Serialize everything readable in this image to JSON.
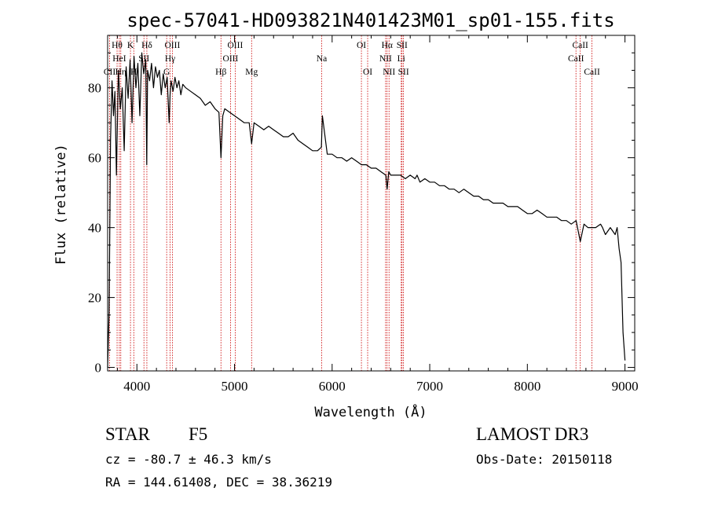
{
  "chart_data": {
    "type": "line",
    "title": "spec-57041-HD093821N401423M01_sp01-155.fits",
    "xlabel": "Wavelength (Å)",
    "ylabel": "Flux (relative)",
    "xlim": [
      3700,
      9100
    ],
    "ylim": [
      -1,
      95
    ],
    "xticks": [
      4000,
      5000,
      6000,
      7000,
      8000,
      9000
    ],
    "xtick_labels": [
      "4000",
      "5000",
      "6000",
      "7000",
      "8000",
      "9000"
    ],
    "yticks": [
      0,
      20,
      40,
      60,
      80
    ],
    "ytick_labels": [
      "0",
      "20",
      "40",
      "60",
      "80"
    ],
    "series": [
      {
        "name": "spectrum",
        "x": [
          3700,
          3715,
          3730,
          3745,
          3760,
          3775,
          3790,
          3810,
          3830,
          3850,
          3870,
          3890,
          3910,
          3930,
          3950,
          3970,
          3990,
          4010,
          4030,
          4050,
          4070,
          4090,
          4101,
          4110,
          4130,
          4150,
          4170,
          4190,
          4210,
          4230,
          4250,
          4270,
          4290,
          4310,
          4330,
          4340,
          4350,
          4370,
          4390,
          4410,
          4430,
          4450,
          4470,
          4500,
          4550,
          4600,
          4650,
          4700,
          4750,
          4800,
          4840,
          4861,
          4880,
          4900,
          4950,
          5000,
          5050,
          5100,
          5150,
          5175,
          5200,
          5250,
          5300,
          5350,
          5400,
          5450,
          5500,
          5550,
          5600,
          5650,
          5700,
          5750,
          5800,
          5850,
          5890,
          5900,
          5950,
          6000,
          6050,
          6100,
          6150,
          6200,
          6250,
          6300,
          6350,
          6400,
          6450,
          6500,
          6550,
          6563,
          6580,
          6600,
          6650,
          6700,
          6750,
          6800,
          6850,
          6870,
          6900,
          6950,
          7000,
          7050,
          7100,
          7150,
          7200,
          7250,
          7300,
          7350,
          7400,
          7450,
          7500,
          7550,
          7600,
          7650,
          7700,
          7750,
          7800,
          7850,
          7900,
          7950,
          8000,
          8050,
          8100,
          8150,
          8200,
          8250,
          8300,
          8350,
          8400,
          8450,
          8500,
          8542,
          8580,
          8620,
          8662,
          8700,
          8750,
          8770,
          8800,
          8850,
          8900,
          8920,
          8940,
          8960,
          8980,
          9000
        ],
        "y": [
          0,
          16,
          65,
          82,
          72,
          79,
          55,
          85,
          74,
          80,
          62,
          86,
          77,
          88,
          70,
          89,
          80,
          87,
          72,
          90,
          84,
          88,
          58,
          85,
          82,
          87,
          80,
          86,
          83,
          85,
          78,
          84,
          80,
          83,
          70,
          78,
          82,
          79,
          83,
          80,
          82,
          78,
          81,
          80,
          79,
          78,
          77,
          75,
          76,
          74,
          73,
          60,
          72,
          74,
          73,
          72,
          71,
          70,
          70,
          64,
          70,
          69,
          68,
          69,
          68,
          67,
          66,
          66,
          67,
          65,
          64,
          63,
          62,
          62,
          63,
          72,
          61,
          61,
          60,
          60,
          59,
          60,
          59,
          58,
          58,
          57,
          57,
          56,
          55,
          51,
          56,
          55,
          55,
          55,
          54,
          55,
          54,
          55,
          53,
          54,
          53,
          53,
          52,
          52,
          51,
          51,
          50,
          51,
          50,
          49,
          49,
          48,
          48,
          47,
          47,
          47,
          46,
          46,
          46,
          45,
          44,
          44,
          45,
          44,
          43,
          43,
          43,
          42,
          42,
          41,
          42,
          36,
          41,
          40,
          40,
          40,
          41,
          40,
          38,
          40,
          38,
          40,
          34,
          30,
          10,
          2
        ]
      }
    ],
    "line_markers": [
      {
        "name": "CII",
        "wavelength": 3720,
        "row": 2
      },
      {
        "name": "Hθ",
        "wavelength": 3797,
        "row": 0
      },
      {
        "name": "HeI",
        "wavelength": 3820,
        "row": 1
      },
      {
        "name": "Hη",
        "wavelength": 3835,
        "row": 2
      },
      {
        "name": "K",
        "wavelength": 3934,
        "row": 0
      },
      {
        "name": "H",
        "wavelength": 3968,
        "row": 2
      },
      {
        "name": "SII",
        "wavelength": 4072,
        "row": 1
      },
      {
        "name": "Hδ",
        "wavelength": 4102,
        "row": 0
      },
      {
        "name": "G",
        "wavelength": 4305,
        "row": 2
      },
      {
        "name": "Hγ",
        "wavelength": 4340,
        "row": 1
      },
      {
        "name": "OIII",
        "wavelength": 4363,
        "row": 0
      },
      {
        "name": "Hβ",
        "wavelength": 4861,
        "row": 2
      },
      {
        "name": "OIII",
        "wavelength": 4959,
        "row": 1
      },
      {
        "name": "OIII",
        "wavelength": 5007,
        "row": 0
      },
      {
        "name": "Mg",
        "wavelength": 5175,
        "row": 2
      },
      {
        "name": "Na",
        "wavelength": 5893,
        "row": 1
      },
      {
        "name": "OI",
        "wavelength": 6300,
        "row": 0
      },
      {
        "name": "OI",
        "wavelength": 6364,
        "row": 2
      },
      {
        "name": "NII",
        "wavelength": 6548,
        "row": 1
      },
      {
        "name": "Hα",
        "wavelength": 6563,
        "row": 0
      },
      {
        "name": "NII",
        "wavelength": 6583,
        "row": 2
      },
      {
        "name": "Li",
        "wavelength": 6708,
        "row": 1
      },
      {
        "name": "SII",
        "wavelength": 6716,
        "row": 0
      },
      {
        "name": "SII",
        "wavelength": 6731,
        "row": 2
      },
      {
        "name": "CaII",
        "wavelength": 8498,
        "row": 1
      },
      {
        "name": "CaII",
        "wavelength": 8542,
        "row": 0
      },
      {
        "name": "CaII",
        "wavelength": 8662,
        "row": 2
      }
    ]
  },
  "info": {
    "object_class": "STAR",
    "subclass": "F5",
    "survey": "LAMOST DR3",
    "redshift": "cz = -80.7 ± 46.3 km/s",
    "obs_date": "Obs-Date: 20150118",
    "coords": "RA = 144.61408, DEC =  38.36219"
  },
  "colors": {
    "spectrum": "#000000",
    "marker": "#cc0000",
    "axes": "#000000"
  }
}
